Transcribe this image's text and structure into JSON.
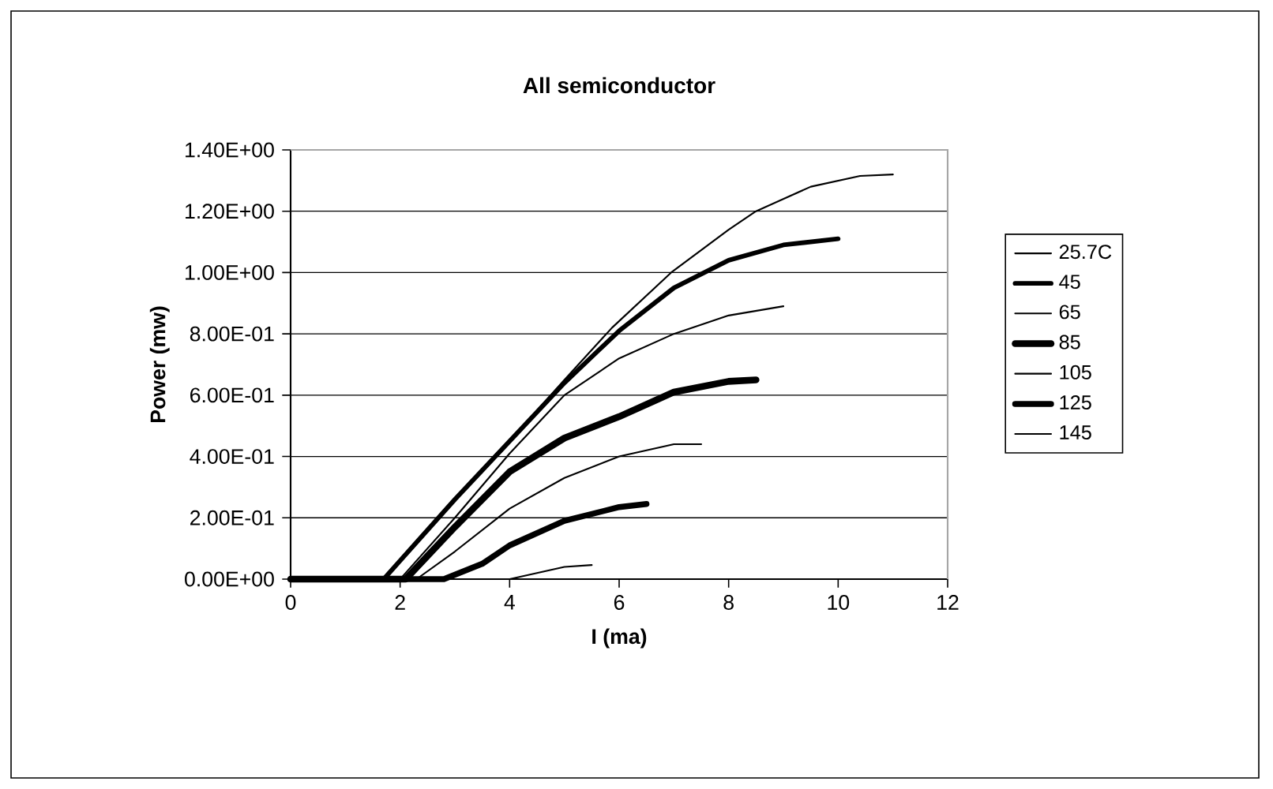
{
  "chart_data": {
    "type": "line",
    "title": "All semiconductor",
    "xlabel": "I (ma)",
    "ylabel": "Power (mw)",
    "xlim": [
      0,
      12
    ],
    "xticks": [
      0,
      2,
      4,
      6,
      8,
      10,
      12
    ],
    "ylim": [
      0,
      1.4
    ],
    "yticks": [
      {
        "value": 0,
        "label": "0.00E+00"
      },
      {
        "value": 0.2,
        "label": "2.00E-01"
      },
      {
        "value": 0.4,
        "label": "4.00E-01"
      },
      {
        "value": 0.6,
        "label": "6.00E-01"
      },
      {
        "value": 0.8,
        "label": "8.00E-01"
      },
      {
        "value": 1.0,
        "label": "1.00E+00"
      },
      {
        "value": 1.2,
        "label": "1.20E+00"
      },
      {
        "value": 1.4,
        "label": "1.40E+00"
      }
    ],
    "grid": "y",
    "legend": "right",
    "marker": "none",
    "line_style": "solid",
    "series": [
      {
        "name": "25.7C",
        "color": "#000000",
        "x": [
          0,
          1.7,
          3,
          4,
          5,
          5.87,
          6.95,
          8,
          8.5,
          9.5,
          10.4,
          11
        ],
        "values": [
          0,
          0,
          0.26,
          0.45,
          0.65,
          0.82,
          1.0,
          1.14,
          1.2,
          1.28,
          1.315,
          1.32
        ]
      },
      {
        "name": "45",
        "color": "#000000",
        "x": [
          0,
          1.7,
          3,
          4,
          5,
          6,
          7,
          8,
          9,
          10
        ],
        "values": [
          0,
          0,
          0.26,
          0.45,
          0.64,
          0.81,
          0.95,
          1.04,
          1.09,
          1.11
        ]
      },
      {
        "name": "65",
        "color": "#000000",
        "x": [
          0,
          2.0,
          3,
          4,
          5,
          6,
          7,
          8,
          9
        ],
        "values": [
          0,
          0,
          0.2,
          0.41,
          0.6,
          0.72,
          0.8,
          0.86,
          0.89
        ]
      },
      {
        "name": "85",
        "color": "#000000",
        "x": [
          0,
          2.1,
          3,
          4,
          5,
          6,
          7,
          8,
          8.5
        ],
        "values": [
          0,
          0,
          0.17,
          0.35,
          0.46,
          0.53,
          0.61,
          0.645,
          0.65
        ]
      },
      {
        "name": "105",
        "color": "#000000",
        "x": [
          0,
          2.3,
          3,
          4,
          5,
          6,
          7,
          7.5
        ],
        "values": [
          0,
          0,
          0.09,
          0.23,
          0.33,
          0.4,
          0.44,
          0.44
        ]
      },
      {
        "name": "125",
        "color": "#000000",
        "x": [
          0,
          2.8,
          3.5,
          4,
          5,
          6,
          6.5
        ],
        "values": [
          0,
          0,
          0.05,
          0.11,
          0.19,
          0.235,
          0.245
        ]
      },
      {
        "name": "145",
        "color": "#000000",
        "x": [
          0,
          4.0,
          4.5,
          5,
          5.5
        ],
        "values": [
          0,
          0,
          0.02,
          0.04,
          0.046
        ]
      }
    ]
  }
}
